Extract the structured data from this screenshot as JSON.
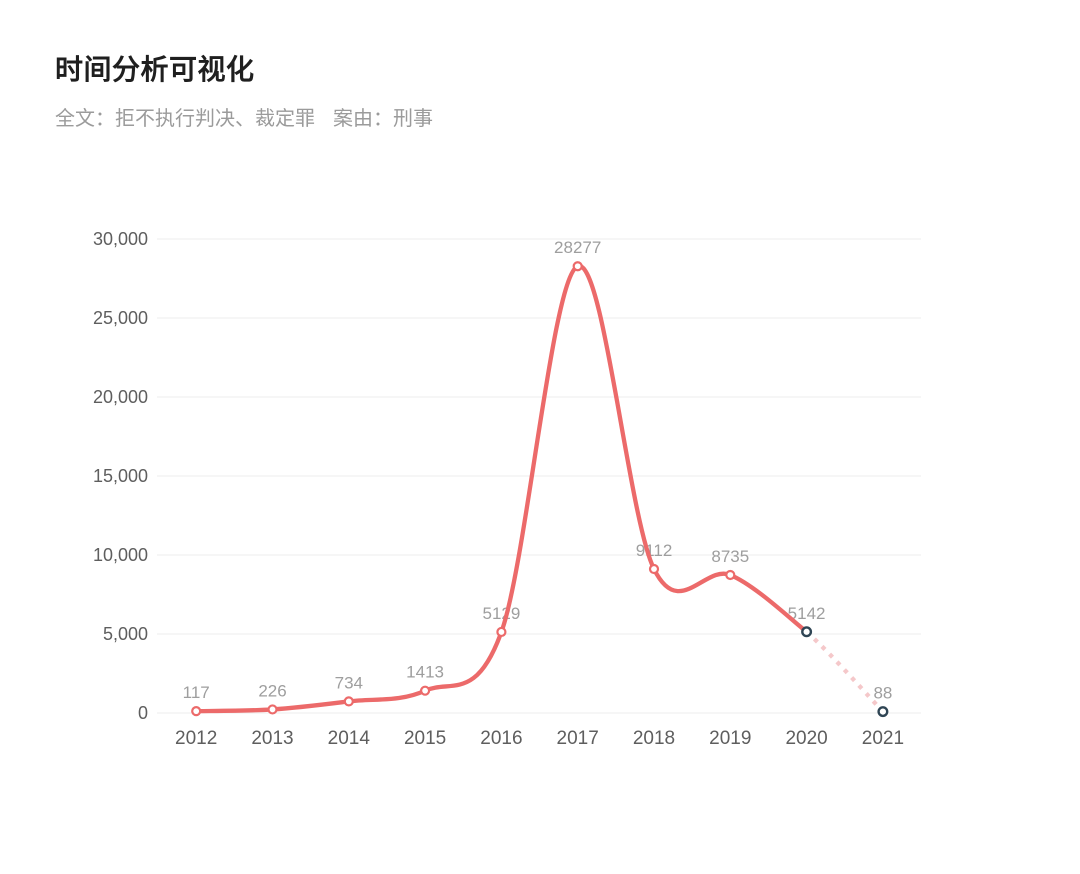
{
  "page": {
    "title": "时间分析可视化",
    "subtitle": {
      "full_text_filter": "全文：拒不执行判决、裁定罪",
      "cause_filter": "案由：刑事"
    }
  },
  "chart_data": {
    "type": "line",
    "title": "时间分析可视化",
    "smooth": true,
    "legend_position": "none",
    "grid": true,
    "categories": [
      "2012",
      "2013",
      "2014",
      "2015",
      "2016",
      "2017",
      "2018",
      "2019",
      "2020",
      "2021"
    ],
    "values": [
      117,
      226,
      734,
      1413,
      5129,
      28277,
      9112,
      8735,
      5142,
      88
    ],
    "point_labels": [
      "117",
      "226",
      "734",
      "1413",
      "5129",
      "28277",
      "9112",
      "8735",
      "5142",
      "88"
    ],
    "xlabel": "",
    "ylabel": "",
    "ylim": [
      0,
      30000
    ],
    "yticks": [
      {
        "value": 0,
        "label": "0"
      },
      {
        "value": 5000,
        "label": "5,000"
      },
      {
        "value": 10000,
        "label": "10,000"
      },
      {
        "value": 15000,
        "label": "15,000"
      },
      {
        "value": 20000,
        "label": "20,000"
      },
      {
        "value": 25000,
        "label": "25,000"
      },
      {
        "value": 30000,
        "label": "30,000"
      }
    ],
    "forecast_from_index": 8,
    "colors": {
      "line": "#ec6a6a",
      "forecast_dotted": "#f5c8ca",
      "marker_fill": "#ffffff",
      "marker_stroke": "#ec6a6a",
      "forecast_marker_stroke": "#2f4554",
      "grid_line": "#ededed",
      "axis_label": "#5e5e5e",
      "point_label": "#9e9e9e"
    }
  }
}
